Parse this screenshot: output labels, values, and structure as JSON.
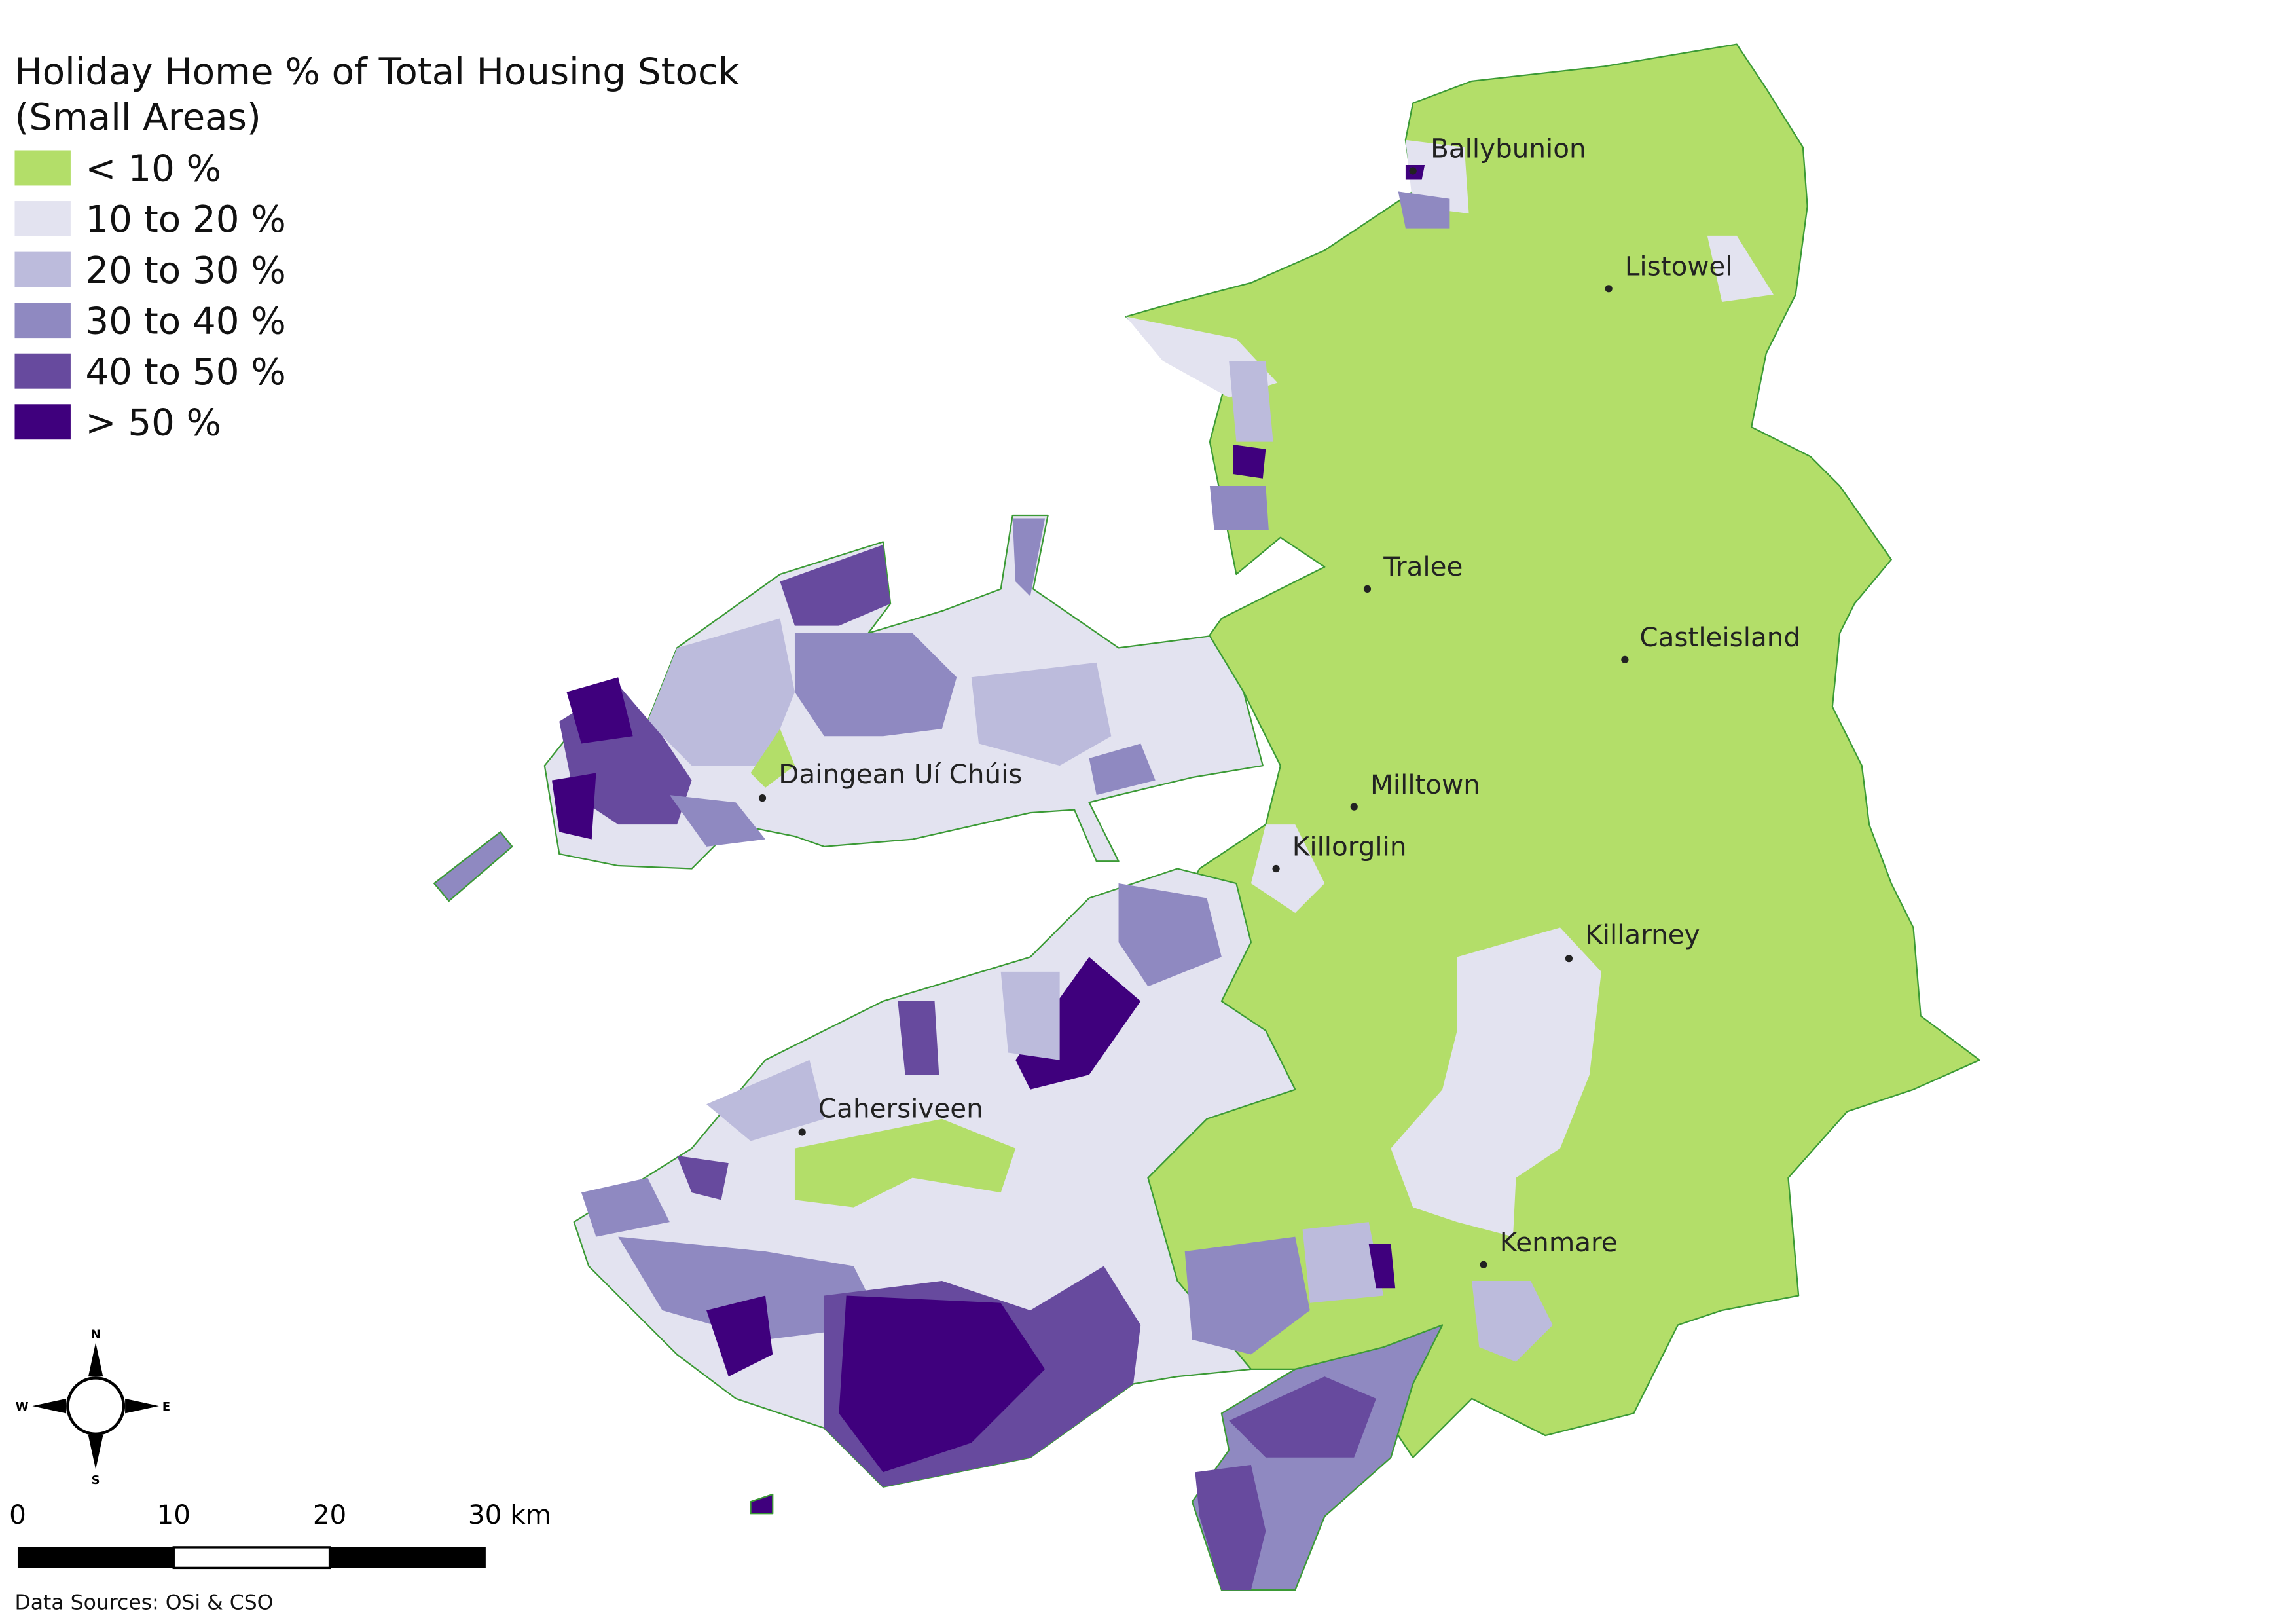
{
  "legend": {
    "title": "Holiday Home % of Total Housing Stock",
    "subtitle": "(Small Areas)",
    "items": [
      {
        "label": "< 10 %",
        "color": "#b3de69"
      },
      {
        "label": "10 to 20 %",
        "color": "#e3e3f0"
      },
      {
        "label": "20 to 30 %",
        "color": "#bcbbdc"
      },
      {
        "label": "30 to 40 %",
        "color": "#8f89c1"
      },
      {
        "label": "40 to 50 %",
        "color": "#674a9e"
      },
      {
        "label": "> 50 %",
        "color": "#3f007d"
      }
    ]
  },
  "towns": [
    {
      "name": "Ballybunion"
    },
    {
      "name": "Listowel"
    },
    {
      "name": "Tralee"
    },
    {
      "name": "Castleisland"
    },
    {
      "name": "Daingean Uí Chúis"
    },
    {
      "name": "Milltown"
    },
    {
      "name": "Killorglin"
    },
    {
      "name": "Killarney"
    },
    {
      "name": "Cahersiveen"
    },
    {
      "name": "Kenmare"
    }
  ],
  "compass": {
    "north": "N",
    "east": "E",
    "south": "S",
    "west": "W"
  },
  "scale_bar": {
    "labels": [
      "0",
      "10",
      "20",
      "30 km"
    ]
  },
  "source": "Data Sources: OSi & CSO"
}
